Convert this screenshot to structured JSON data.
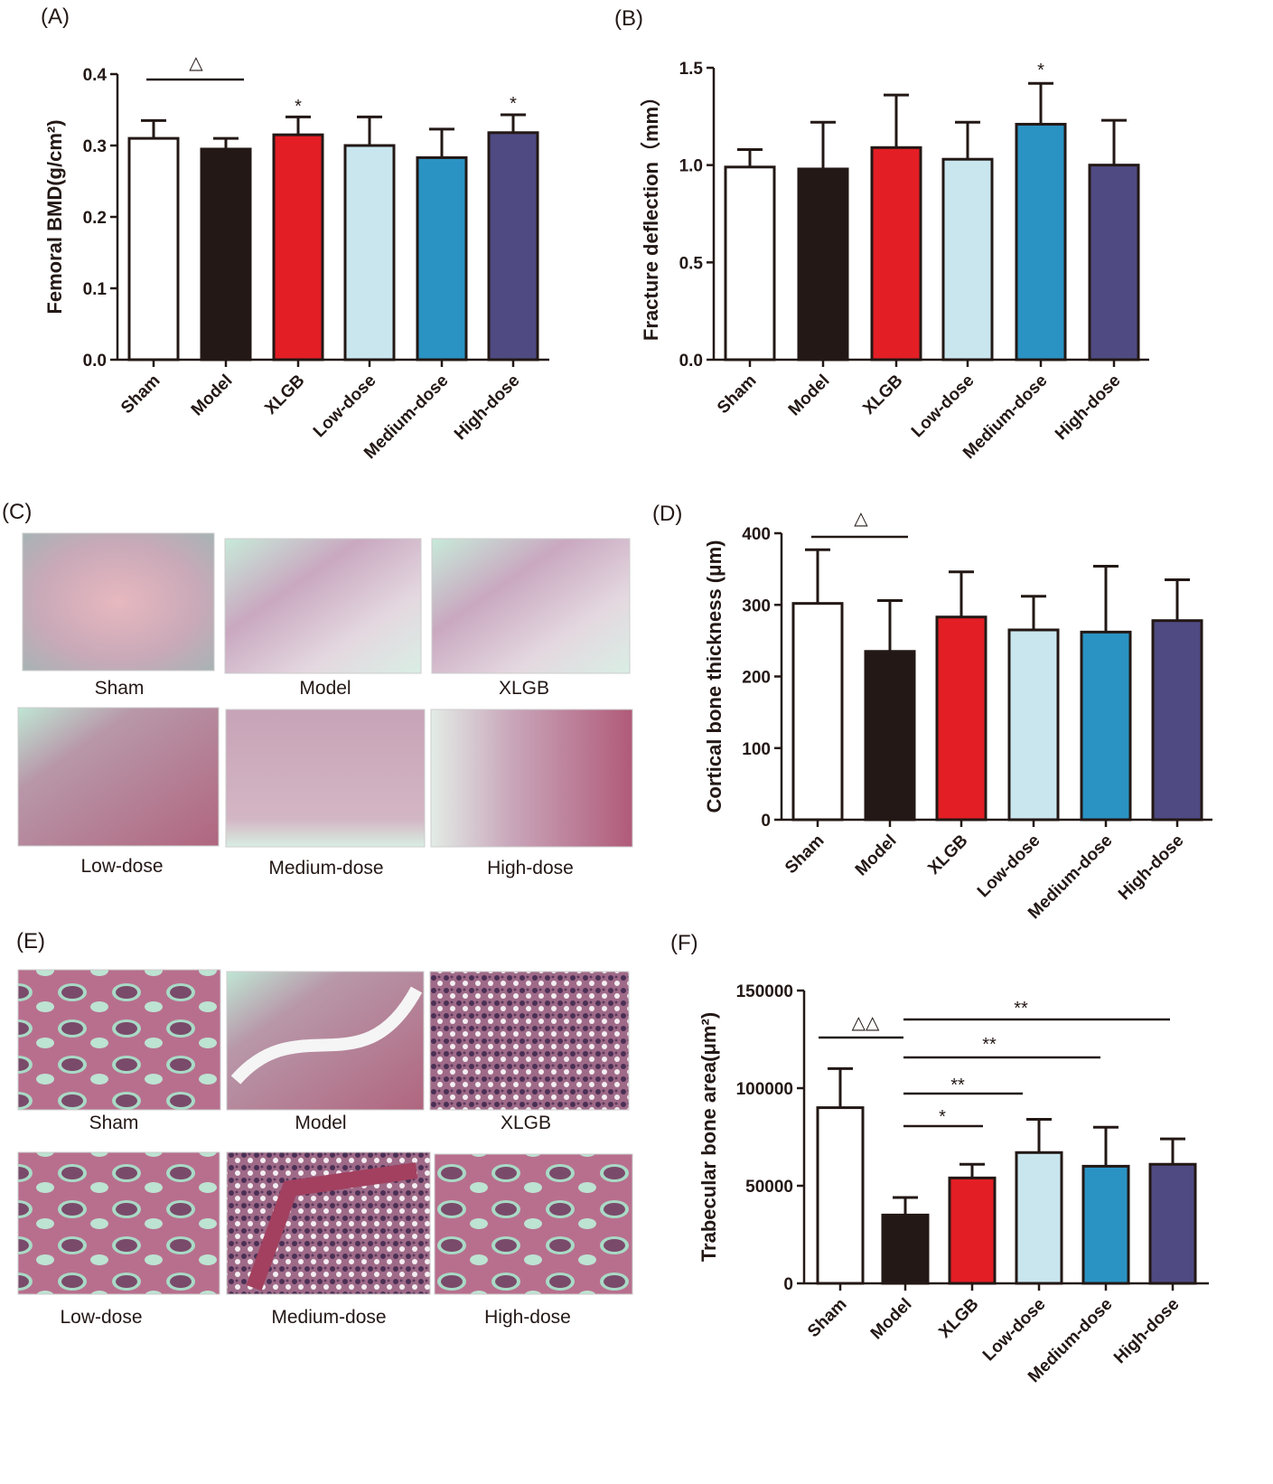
{
  "panel_letters": {
    "A": "(A)",
    "B": "(B)",
    "C": "(C)",
    "D": "(D)",
    "E": "(E)",
    "F": "(F)"
  },
  "colors": {
    "Sham": "#ffffff",
    "Model": "#231815",
    "XLGB": "#e31e25",
    "Low-dose": "#c9e6ee",
    "Medium-dose": "#2a93c3",
    "High-dose": "#4f4a82"
  },
  "image_panels": {
    "C": {
      "labels": [
        "Sham",
        "Model",
        "XLGB",
        "Low-dose",
        "Medium-dose",
        "High-dose"
      ]
    },
    "E": {
      "labels": [
        "Sham",
        "Model",
        "XLGB",
        "Low-dose",
        "Medium-dose",
        "High-dose"
      ]
    }
  },
  "chart_data": [
    {
      "id": "A",
      "type": "bar",
      "categories": [
        "Sham",
        "Model",
        "XLGB",
        "Low-dose",
        "Medium-dose",
        "High-dose"
      ],
      "values": [
        0.31,
        0.295,
        0.315,
        0.3,
        0.283,
        0.318
      ],
      "error_upper": [
        0.335,
        0.31,
        0.34,
        0.34,
        0.323,
        0.343
      ],
      "ylabel": "Femoral BMD(g/cm²)",
      "ylim": [
        0,
        0.4
      ],
      "yticks": [
        0,
        0.1,
        0.2,
        0.3,
        0.4
      ],
      "tick_labels": [
        "0.0",
        "0.1",
        "0.2",
        "0.3",
        "0.4"
      ],
      "annotations": [
        {
          "text": "△",
          "from": "Sham",
          "to": "Model"
        },
        {
          "text": "*",
          "over": "XLGB"
        },
        {
          "text": "*",
          "over": "High-dose"
        }
      ]
    },
    {
      "id": "B",
      "type": "bar",
      "categories": [
        "Sham",
        "Model",
        "XLGB",
        "Low-dose",
        "Medium-dose",
        "High-dose"
      ],
      "values": [
        0.99,
        0.98,
        1.09,
        1.03,
        1.21,
        1.0
      ],
      "error_upper": [
        1.08,
        1.22,
        1.36,
        1.22,
        1.42,
        1.23
      ],
      "ylabel": "Fracture deflection（mm）",
      "ylim": [
        0,
        1.5
      ],
      "yticks": [
        0,
        0.5,
        1.0,
        1.5
      ],
      "tick_labels": [
        "0.0",
        "0.5",
        "1.0",
        "1.5"
      ],
      "annotations": [
        {
          "text": "*",
          "over": "Medium-dose"
        }
      ]
    },
    {
      "id": "D",
      "type": "bar",
      "categories": [
        "Sham",
        "Model",
        "XLGB",
        "Low-dose",
        "Medium-dose",
        "High-dose"
      ],
      "values": [
        302,
        235,
        283,
        265,
        262,
        278
      ],
      "error_upper": [
        377,
        306,
        346,
        312,
        354,
        335
      ],
      "ylabel": "Cortical bone thickness (μm)",
      "ylim": [
        0,
        400
      ],
      "yticks": [
        0,
        100,
        200,
        300,
        400
      ],
      "tick_labels": [
        "0",
        "100",
        "200",
        "300",
        "400"
      ],
      "annotations": [
        {
          "text": "△",
          "from": "Sham",
          "to": "Model"
        }
      ]
    },
    {
      "id": "F",
      "type": "bar",
      "categories": [
        "Sham",
        "Model",
        "XLGB",
        "Low-dose",
        "Medium-dose",
        "High-dose"
      ],
      "values": [
        90000,
        35000,
        54000,
        67000,
        60000,
        61000
      ],
      "error_upper": [
        110000,
        44000,
        61000,
        84000,
        80000,
        74000
      ],
      "ylabel": "Trabecular bone  area(μm²)",
      "ylim": [
        0,
        150000
      ],
      "yticks": [
        0,
        50000,
        100000,
        150000
      ],
      "tick_labels": [
        "0",
        "50000",
        "100000",
        "150000"
      ],
      "annotations": [
        {
          "text": "△△",
          "from": "Sham",
          "to": "Model"
        },
        {
          "text": "**",
          "from": "Model",
          "to": "High-dose"
        },
        {
          "text": "**",
          "from": "Model",
          "to": "Medium-dose"
        },
        {
          "text": "**",
          "from": "Model",
          "to": "Low-dose"
        },
        {
          "text": "*",
          "from": "Model",
          "to": "XLGB"
        }
      ]
    }
  ]
}
